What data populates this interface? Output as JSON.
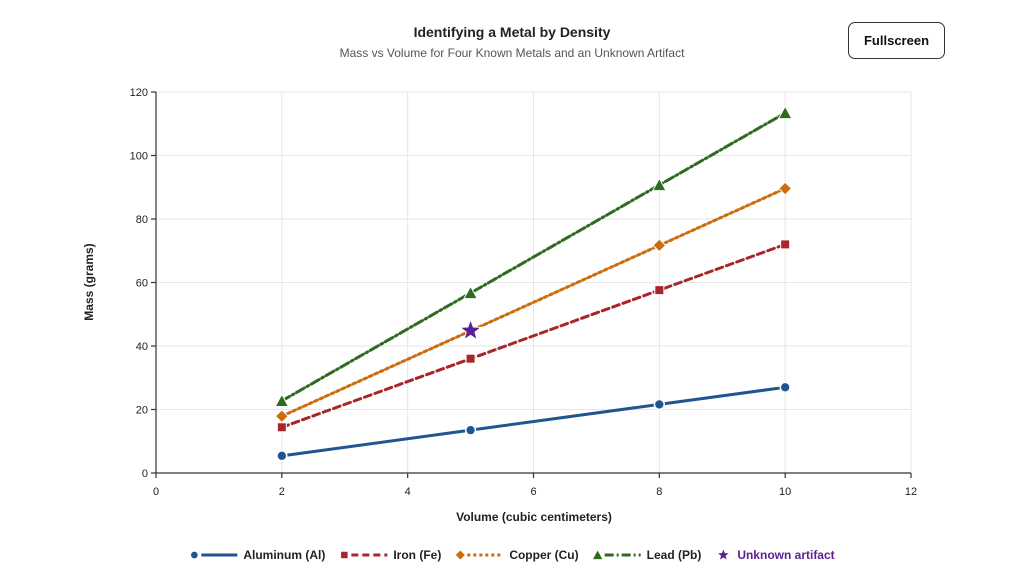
{
  "header": {
    "title": "Identifying a Metal by Density",
    "subtitle": "Mass vs Volume for Four Known Metals and an Unknown Artifact",
    "fullscreen_label": "Fullscreen"
  },
  "chart_data": {
    "type": "line",
    "title": "Identifying a Metal by Density",
    "subtitle": "Mass vs Volume for Four Known Metals and an Unknown Artifact",
    "xlabel": "Volume (cubic centimeters)",
    "ylabel": "Mass (grams)",
    "xlim": [
      0,
      12
    ],
    "ylim": [
      0,
      120
    ],
    "xticks": [
      0,
      2,
      4,
      6,
      8,
      10,
      12
    ],
    "yticks": [
      0,
      20,
      40,
      60,
      80,
      100,
      120
    ],
    "grid": true,
    "legend_position": "bottom",
    "series": [
      {
        "name": "Aluminum (Al)",
        "color": "#1f5591",
        "marker": "circle",
        "dash": "solid",
        "x": [
          2,
          5,
          8,
          10
        ],
        "y": [
          5.4,
          13.5,
          21.6,
          27.0
        ]
      },
      {
        "name": "Iron (Fe)",
        "color": "#a8262a",
        "marker": "square",
        "dash": "dash",
        "x": [
          2,
          5,
          8,
          10
        ],
        "y": [
          14.4,
          36.0,
          57.6,
          72.0
        ]
      },
      {
        "name": "Copper (Cu)",
        "color": "#cc6c0c",
        "marker": "diamond",
        "dash": "dot",
        "x": [
          2,
          5,
          8,
          10
        ],
        "y": [
          17.9,
          44.8,
          71.7,
          89.6
        ]
      },
      {
        "name": "Lead (Pb)",
        "color": "#2e6a1f",
        "marker": "triangle",
        "dash": "dashdot",
        "x": [
          2,
          5,
          8,
          10
        ],
        "y": [
          22.7,
          56.7,
          90.7,
          113.4
        ]
      },
      {
        "name": "Unknown artifact",
        "color": "#5b2291",
        "marker": "star",
        "dash": "none",
        "x": [
          5
        ],
        "y": [
          44.8
        ]
      }
    ]
  }
}
